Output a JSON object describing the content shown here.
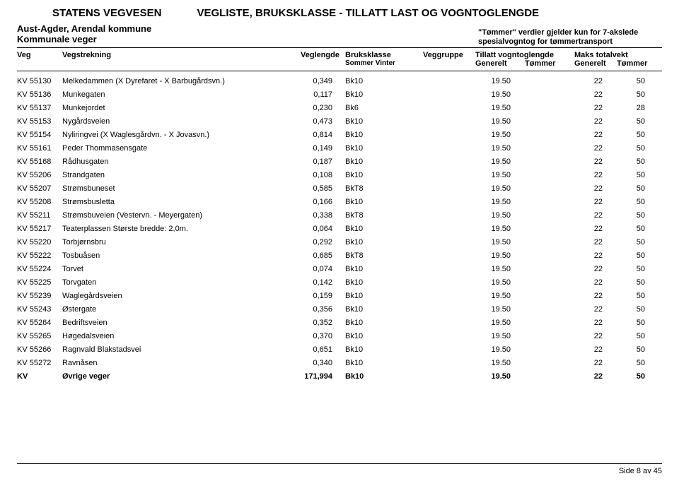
{
  "header": {
    "organization": "STATENS VEGVESEN",
    "title": "VEGLISTE, BRUKSKLASSE - TILLATT LAST OG VOGNTOGLENGDE",
    "region": "Aust-Agder, Arendal kommune",
    "roadtype": "Kommunale veger",
    "note_line1": "\"Tømmer\" verdier gjelder kun for 7-akslede",
    "note_line2": "spesialvogntog for tømmertransport"
  },
  "columns": {
    "veg": "Veg",
    "strekning": "Vegstrekning",
    "lengde": "Veglengde",
    "bruksklasse": "Bruksklasse",
    "bruksklasse_sub": "Sommer   Vinter",
    "gruppe": "Veggruppe",
    "vogntoglengde": "Tillatt vogntoglengde",
    "vogntoglengde_sub1": "Generelt",
    "vogntoglengde_sub2": "Tømmer",
    "maksvekt": "Maks totalvekt",
    "maksvekt_sub1": "Generelt",
    "maksvekt_sub2": "Tømmer"
  },
  "rows": [
    {
      "veg": "KV 55130",
      "str": "Melkedammen (X Dyrefaret - X Barbugårdsvn.)",
      "len": "0,349",
      "bk": "Bk10",
      "g1": "19.50",
      "g2": "22",
      "t2": "50"
    },
    {
      "veg": "KV 55136",
      "str": "Munkegaten",
      "len": "0,117",
      "bk": "Bk10",
      "g1": "19.50",
      "g2": "22",
      "t2": "50"
    },
    {
      "veg": "KV 55137",
      "str": "Munkejordet",
      "len": "0,230",
      "bk": "Bk6",
      "g1": "19.50",
      "g2": "22",
      "t2": "28"
    },
    {
      "veg": "KV 55153",
      "str": "Nygårdsveien",
      "len": "0,473",
      "bk": "Bk10",
      "g1": "19.50",
      "g2": "22",
      "t2": "50"
    },
    {
      "veg": "KV 55154",
      "str": "Nyliringvei (X Waglesgårdvn. - X Jovasvn.)",
      "len": "0,814",
      "bk": "Bk10",
      "g1": "19.50",
      "g2": "22",
      "t2": "50"
    },
    {
      "veg": "KV 55161",
      "str": "Peder Thommasensgate",
      "len": "0,149",
      "bk": "Bk10",
      "g1": "19.50",
      "g2": "22",
      "t2": "50"
    },
    {
      "veg": "KV 55168",
      "str": "Rådhusgaten",
      "len": "0,187",
      "bk": "Bk10",
      "g1": "19.50",
      "g2": "22",
      "t2": "50"
    },
    {
      "veg": "KV 55206",
      "str": "Strandgaten",
      "len": "0,108",
      "bk": "Bk10",
      "g1": "19.50",
      "g2": "22",
      "t2": "50"
    },
    {
      "veg": "KV 55207",
      "str": "Strømsbuneset",
      "len": "0,585",
      "bk": "BkT8",
      "g1": "19.50",
      "g2": "22",
      "t2": "50"
    },
    {
      "veg": "KV 55208",
      "str": "Strømsbusletta",
      "len": "0,166",
      "bk": "Bk10",
      "g1": "19.50",
      "g2": "22",
      "t2": "50"
    },
    {
      "veg": "KV 55211",
      "str": "Strømsbuveien (Vestervn. - Meyergaten)",
      "len": "0,338",
      "bk": "BkT8",
      "g1": "19.50",
      "g2": "22",
      "t2": "50"
    },
    {
      "veg": "KV 55217",
      "str": "Teaterplassen Største bredde: 2,0m.",
      "len": "0,064",
      "bk": "Bk10",
      "g1": "19.50",
      "g2": "22",
      "t2": "50"
    },
    {
      "veg": "KV 55220",
      "str": "Torbjørnsbru",
      "len": "0,292",
      "bk": "Bk10",
      "g1": "19.50",
      "g2": "22",
      "t2": "50"
    },
    {
      "veg": "KV 55222",
      "str": "Tosbuåsen",
      "len": "0,685",
      "bk": "BkT8",
      "g1": "19.50",
      "g2": "22",
      "t2": "50"
    },
    {
      "veg": "KV 55224",
      "str": "Torvet",
      "len": "0,074",
      "bk": "Bk10",
      "g1": "19.50",
      "g2": "22",
      "t2": "50"
    },
    {
      "veg": "KV 55225",
      "str": "Torvgaten",
      "len": "0,142",
      "bk": "Bk10",
      "g1": "19.50",
      "g2": "22",
      "t2": "50"
    },
    {
      "veg": "KV 55239",
      "str": "Waglegårdsveien",
      "len": "0,159",
      "bk": "Bk10",
      "g1": "19.50",
      "g2": "22",
      "t2": "50"
    },
    {
      "veg": "KV 55243",
      "str": "Østergate",
      "len": "0,356",
      "bk": "Bk10",
      "g1": "19.50",
      "g2": "22",
      "t2": "50"
    },
    {
      "veg": "KV 55264",
      "str": "Bedriftsveien",
      "len": "0,352",
      "bk": "Bk10",
      "g1": "19.50",
      "g2": "22",
      "t2": "50"
    },
    {
      "veg": "KV 55265",
      "str": "Høgedalsveien",
      "len": "0,370",
      "bk": "Bk10",
      "g1": "19.50",
      "g2": "22",
      "t2": "50"
    },
    {
      "veg": "KV 55266",
      "str": "Ragnvald Blakstadsvei",
      "len": "0,651",
      "bk": "Bk10",
      "g1": "19.50",
      "g2": "22",
      "t2": "50"
    },
    {
      "veg": "KV 55272",
      "str": "Ravnåsen",
      "len": "0,340",
      "bk": "Bk10",
      "g1": "19.50",
      "g2": "22",
      "t2": "50"
    }
  ],
  "summary": {
    "veg": "KV",
    "str": "Øvrige veger",
    "len": "171,994",
    "bk": "Bk10",
    "g1": "19.50",
    "g2": "22",
    "t2": "50"
  },
  "footer": "Side 8 av 45"
}
